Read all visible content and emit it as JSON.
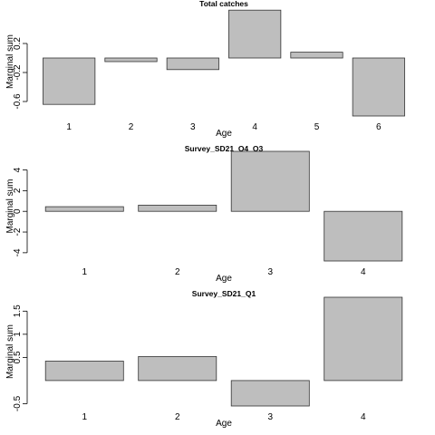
{
  "chart_data": [
    {
      "type": "bar",
      "title": "Total catches",
      "xlabel": "Age",
      "ylabel": "Marginal sum",
      "categories": [
        "1",
        "2",
        "3",
        "4",
        "5",
        "6"
      ],
      "values": [
        -0.64,
        -0.05,
        -0.16,
        0.66,
        0.08,
        -0.8
      ],
      "ylim": [
        -0.8,
        0.7
      ],
      "yticks": [
        -0.6,
        -0.2,
        0.2
      ],
      "grid": false,
      "bar_color": "#bebebe"
    },
    {
      "type": "bar",
      "title": "Survey_SD21_Q4_Q3",
      "xlabel": "Age",
      "ylabel": "Marginal sum",
      "categories": [
        "1",
        "2",
        "3",
        "4"
      ],
      "values": [
        0.45,
        0.6,
        5.8,
        -4.8
      ],
      "ylim": [
        -4.8,
        5.8
      ],
      "yticks": [
        -4,
        -2,
        0,
        2,
        4
      ],
      "grid": false,
      "bar_color": "#bebebe"
    },
    {
      "type": "bar",
      "title": "Survey_SD21_Q1",
      "xlabel": "Age",
      "ylabel": "Marginal sum",
      "categories": [
        "1",
        "2",
        "3",
        "4"
      ],
      "values": [
        0.42,
        0.52,
        -0.55,
        1.8
      ],
      "ylim": [
        -0.55,
        1.8
      ],
      "yticks": [
        -0.5,
        0.5,
        1.0,
        1.5
      ],
      "grid": false,
      "bar_color": "#bebebe"
    }
  ]
}
